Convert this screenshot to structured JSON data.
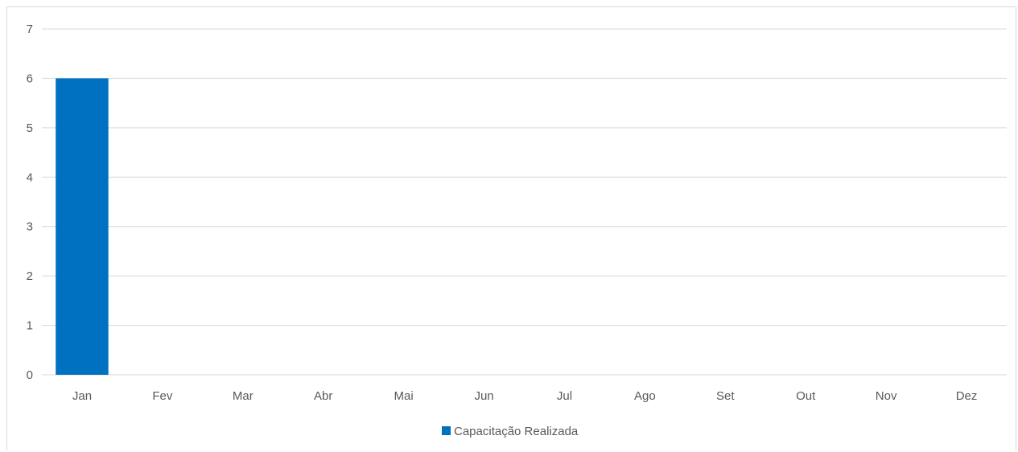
{
  "chart_data": {
    "type": "bar",
    "categories": [
      "Jan",
      "Fev",
      "Mar",
      "Abr",
      "Mai",
      "Jun",
      "Jul",
      "Ago",
      "Set",
      "Out",
      "Nov",
      "Dez"
    ],
    "series": [
      {
        "name": "Capacitação Realizada",
        "values": [
          6,
          0,
          0,
          0,
          0,
          0,
          0,
          0,
          0,
          0,
          0,
          0
        ],
        "color": "#0070c0"
      }
    ],
    "yticks": [
      "0",
      "1",
      "2",
      "3",
      "4",
      "5",
      "6",
      "7"
    ],
    "ylim": [
      0,
      7
    ],
    "grid": true,
    "legend_position": "bottom",
    "title": "",
    "xlabel": "",
    "ylabel": ""
  },
  "colors": {
    "bar": "#0070c0",
    "grid": "#d9d9d9",
    "text": "#595959"
  }
}
